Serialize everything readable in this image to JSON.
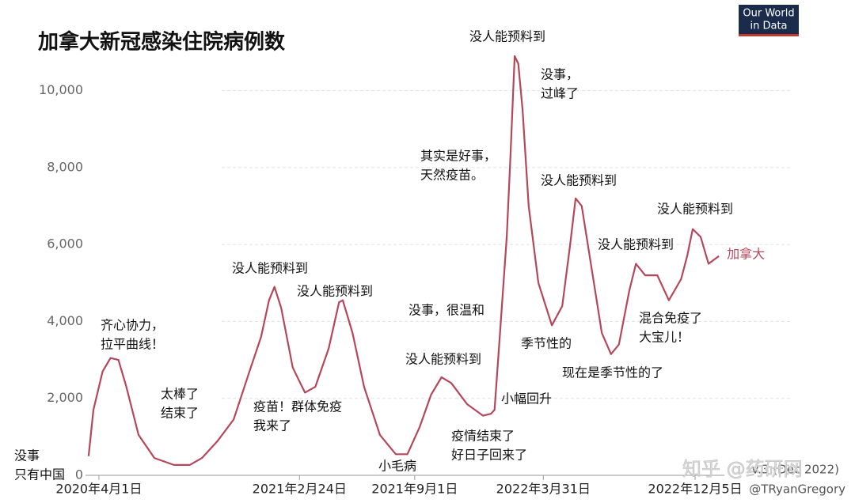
{
  "chart_data": {
    "type": "line",
    "title": "加拿大新冠感染住院病例数",
    "x": [
      "2020-03-15",
      "2020-03-23",
      "2020-04-07",
      "2020-04-20",
      "2020-05-03",
      "2020-05-16",
      "2020-06-05",
      "2020-07-01",
      "2020-08-02",
      "2020-08-28",
      "2020-09-17",
      "2020-10-13",
      "2020-11-08",
      "2020-12-04",
      "2020-12-23",
      "2021-01-05",
      "2021-01-14",
      "2021-01-25",
      "2021-02-13",
      "2021-03-05",
      "2021-03-22",
      "2021-04-13",
      "2021-04-30",
      "2021-05-06",
      "2021-05-22",
      "2021-06-10",
      "2021-07-06",
      "2021-08-01",
      "2021-08-20",
      "2021-09-09",
      "2021-09-28",
      "2021-10-15",
      "2021-10-31",
      "2021-11-26",
      "2021-12-22",
      "2022-01-04",
      "2022-01-10",
      "2022-01-19",
      "2022-01-30",
      "2022-02-05",
      "2022-02-12",
      "2022-02-18",
      "2022-02-25",
      "2022-03-07",
      "2022-03-23",
      "2022-04-14",
      "2022-05-01",
      "2022-05-14",
      "2022-05-23",
      "2022-06-02",
      "2022-06-19",
      "2022-07-05",
      "2022-07-20",
      "2022-08-02",
      "2022-08-19",
      "2022-08-30",
      "2022-09-14",
      "2022-10-04",
      "2022-10-23",
      "2022-11-12",
      "2022-11-22",
      "2022-12-01",
      "2022-12-14",
      "2022-12-27",
      "2023-01-13"
    ],
    "series": [
      {
        "name": "加拿大",
        "color": "#b5475a",
        "values": [
          500,
          1700,
          2700,
          3050,
          3000,
          2300,
          1050,
          450,
          270,
          270,
          450,
          900,
          1450,
          2700,
          3600,
          4550,
          4900,
          4350,
          2800,
          2150,
          2300,
          3300,
          4500,
          4550,
          3700,
          2300,
          1050,
          550,
          550,
          1250,
          2100,
          2550,
          2400,
          1850,
          1550,
          1600,
          1700,
          3700,
          6200,
          8250,
          10900,
          10700,
          9500,
          7000,
          5000,
          3900,
          4400,
          6000,
          7200,
          7000,
          5300,
          3700,
          3150,
          3400,
          4800,
          5500,
          5200,
          5200,
          4550,
          5100,
          5700,
          6400,
          6200,
          5500,
          5700
        ]
      }
    ],
    "xlim": [
      "2020-03-10",
      "2023-01-22"
    ],
    "xticks": [
      {
        "value": "2020-04-01",
        "label": "2020年4月1日"
      },
      {
        "value": "2021-02-24",
        "label": "2021年2月24日"
      },
      {
        "value": "2021-09-01",
        "label": "2021年9月1日"
      },
      {
        "value": "2022-03-31",
        "label": "2022年3月31日"
      },
      {
        "value": "2022-12-05",
        "label": "2022年12月5日"
      }
    ],
    "ylim": [
      0,
      11000
    ],
    "yticks": [
      0,
      {
        "value": 2000,
        "label": "2,000"
      },
      {
        "value": 4000,
        "label": "4,000"
      },
      {
        "value": 6000,
        "label": "6,000"
      },
      {
        "value": 8000,
        "label": "8,000"
      },
      {
        "value": 10000,
        "label": "10,000"
      }
    ],
    "grid": true,
    "annotations": [
      [
        "没事",
        "只有中国"
      ],
      [
        "齐心协力，",
        "拉平曲线！"
      ],
      [
        "太棒了",
        "结束了"
      ],
      [
        "没人能预料到"
      ],
      [
        "没人能预料到"
      ],
      [
        "疫苗！群体免疫",
        "我来了"
      ],
      [
        "小毛病"
      ],
      [
        "没事，很温和"
      ],
      [
        "没人能预料到"
      ],
      [
        "疫情结束了",
        "好日子回来了"
      ],
      [
        "小幅回升"
      ],
      [
        "其实是好事，",
        "天然疫苗。"
      ],
      [
        "没人能预料到"
      ],
      [
        "没事，",
        "过峰了"
      ],
      [
        "没人能预料到"
      ],
      [
        "季节性的"
      ],
      [
        "现在是季节性的了"
      ],
      [
        "没人能预料到"
      ],
      [
        "没人能预料到"
      ],
      [
        "混合免疫了",
        "大宝儿！"
      ]
    ],
    "source_logo": [
      "Our World",
      "in Data"
    ],
    "version": "v.3 (Dec 2022)",
    "credit": "@TRyanGregory",
    "watermark": "知乎 @药研网"
  }
}
